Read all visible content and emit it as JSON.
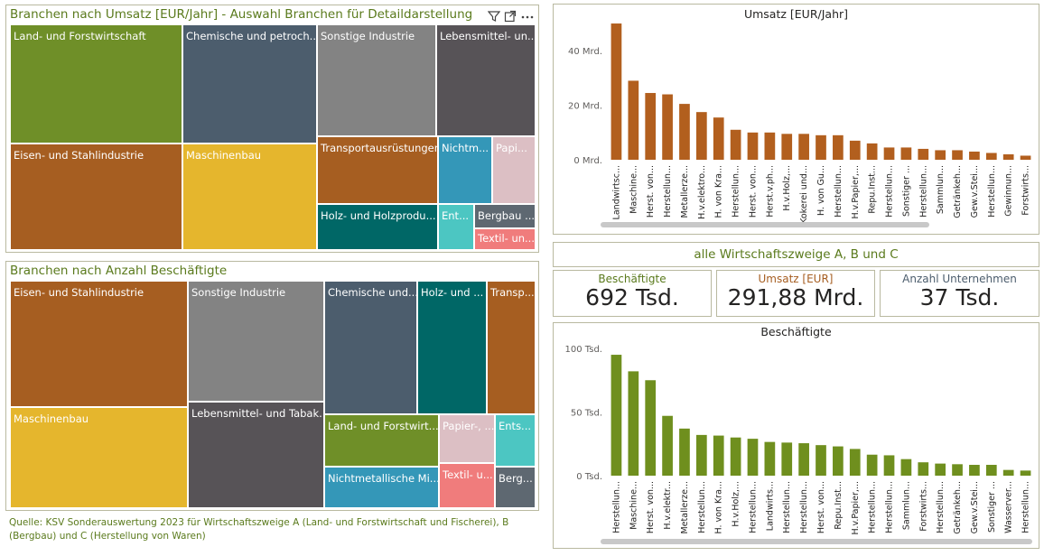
{
  "treemap_revenue": {
    "title": "Branchen nach Umsatz [EUR/Jahr] - Auswahl Branchen für Detaildarstellung",
    "tiles": [
      {
        "label": "Land- und Forstwirtschaft",
        "color": "#6f8f28"
      },
      {
        "label": "Eisen- und Stahlindustrie",
        "color": "#a65e21"
      },
      {
        "label": "Chemische und petroch...",
        "color": "#4c5d6d"
      },
      {
        "label": "Maschinenbau",
        "color": "#e5b62d"
      },
      {
        "label": "Sonstige Industrie",
        "color": "#838383"
      },
      {
        "label": "Lebensmittel- un...",
        "color": "#575357"
      },
      {
        "label": "Transportausrüstungen",
        "color": "#a65e21"
      },
      {
        "label": "Nichtm...",
        "color": "#3497b8"
      },
      {
        "label": "Papi...",
        "color": "#dcbfc4"
      },
      {
        "label": "Holz- und Holzprodu...",
        "color": "#006766"
      },
      {
        "label": "Ent...",
        "color": "#4cc6c2"
      },
      {
        "label": "Bergbau ...",
        "color": "#5e6871"
      },
      {
        "label": "Textil- un...",
        "color": "#f07c7c"
      }
    ]
  },
  "treemap_employees": {
    "title": "Branchen nach Anzahl Beschäftigte",
    "tiles": [
      {
        "label": "Eisen- und Stahlindustrie",
        "color": "#a65e21"
      },
      {
        "label": "Maschinenbau",
        "color": "#e5b62d"
      },
      {
        "label": "Sonstige Industrie",
        "color": "#838383"
      },
      {
        "label": "Lebensmittel- und Tabak...",
        "color": "#575357"
      },
      {
        "label": "Chemische und...",
        "color": "#4c5d6d"
      },
      {
        "label": "Holz- und ...",
        "color": "#006766"
      },
      {
        "label": "Transp...",
        "color": "#a65e21"
      },
      {
        "label": "Land- und Forstwirt...",
        "color": "#6f8f28"
      },
      {
        "label": "Papier-, ...",
        "color": "#dcbfc4"
      },
      {
        "label": "Ents...",
        "color": "#4cc6c2"
      },
      {
        "label": "Nichtmetallische Mi...",
        "color": "#3497b8"
      },
      {
        "label": "Textil- u...",
        "color": "#f07c7c"
      },
      {
        "label": "Berg...",
        "color": "#5e6871"
      }
    ]
  },
  "banner": {
    "text": "alle Wirtschaftszweige A, B und C"
  },
  "kpis": [
    {
      "label": "Beschäftigte",
      "value": "692 Tsd.",
      "color": "#5a7a1c"
    },
    {
      "label": "Umsatz [EUR]",
      "value": "291,88 Mrd.",
      "color": "#a65e21"
    },
    {
      "label": "Anzahl Unternehmen",
      "value": "37 Tsd.",
      "color": "#4c5d6d"
    }
  ],
  "source_text": "Quelle: KSV Sonderauswertung 2023 für Wirtschaftszweige A (Land- und Forstwirtschaft und Fischerei), B (Bergbau) und C (Herstellung von Waren)",
  "toolbar": {
    "icons": [
      "filter-icon",
      "focus-mode-icon",
      "more-options-icon"
    ]
  },
  "chart_data": [
    {
      "type": "bar",
      "title": "Umsatz [EUR/Jahr]",
      "color": "#b25f1e",
      "yticks": [
        "0 Mrd.",
        "20 Mrd.",
        "40 Mrd."
      ],
      "ylim": [
        0,
        52
      ],
      "categories": [
        "Landwirtsc...",
        "Maschine...",
        "Herst. von...",
        "Herstellun...",
        "Metallerze...",
        "H.v.elektro...",
        "H. von Kra...",
        "Herstellun...",
        "Herst. von...",
        "Herst.v.ph...",
        "H.v.Holz,...",
        "Kokerei und...",
        "H. von Gu...",
        "Herstellun...",
        "H.v.Papier,...",
        "Repu.Inst...",
        "Herstellun...",
        "Sonstiger ...",
        "Herstellun...",
        "Sammlun...",
        "Getränkeh...",
        "Gew.v.Stei...",
        "Herstellun...",
        "Gewinnun...",
        "Forstwirts..."
      ],
      "values": [
        50,
        29,
        24.5,
        24,
        20.5,
        17.5,
        15.5,
        11,
        10,
        10,
        9.5,
        9.5,
        9,
        9,
        7,
        6,
        4.5,
        4.5,
        4,
        3.5,
        3.5,
        3,
        2.5,
        2,
        1.5
      ]
    },
    {
      "type": "bar",
      "title": "Beschäftigte",
      "color": "#6f8f1e",
      "yticks": [
        "0 Tsd.",
        "50 Tsd.",
        "100 Tsd."
      ],
      "ylim": [
        0,
        100
      ],
      "categories": [
        "Herstellun...",
        "Maschine...",
        "Herst. von...",
        "H.v.elektr...",
        "Metallerze...",
        "Herstellun...",
        "H. von Kra...",
        "H.v.Holz,...",
        "Herstellun...",
        "Landwirts...",
        "Herstellun...",
        "Herstellun...",
        "Herst. von...",
        "Repu.Inst...",
        "H.v.Papier,...",
        "Herstellun...",
        "Herstellun...",
        "Sammlun...",
        "Forstwirts...",
        "Herstellun...",
        "Getränkeh...",
        "Gew.v.Stei...",
        "Sonstiger ...",
        "Wasserver...",
        "Herstellun..."
      ],
      "values": [
        95,
        82,
        75,
        47,
        37,
        32,
        31.5,
        30,
        29,
        26.5,
        26,
        25.5,
        24,
        23,
        21,
        16.5,
        16,
        13,
        10.5,
        9.5,
        9,
        8.5,
        8.5,
        4.5,
        4
      ]
    }
  ]
}
